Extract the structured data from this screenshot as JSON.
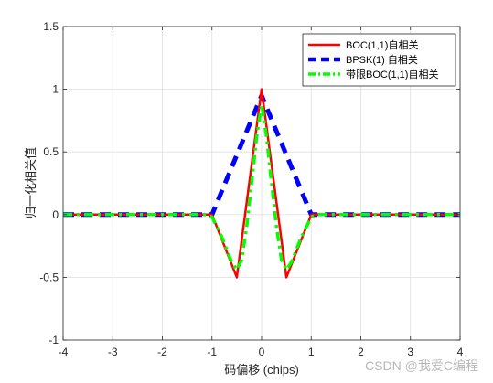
{
  "chart_data": {
    "type": "line",
    "title": "",
    "xlabel": "码偏移 (chips)",
    "ylabel": "归一化相关值",
    "xlim": [
      -4,
      4
    ],
    "ylim": [
      -1,
      1.5
    ],
    "xticks": [
      -4,
      -3,
      -2,
      -1,
      0,
      1,
      2,
      3,
      4
    ],
    "yticks": [
      -1,
      -0.5,
      0,
      0.5,
      1,
      1.5
    ],
    "xtick_labels": [
      "-4",
      "-3",
      "-2",
      "-1",
      "0",
      "1",
      "2",
      "3",
      "4"
    ],
    "ytick_labels": [
      "-1",
      "-0.5",
      "0",
      "0.5",
      "1",
      "1.5"
    ],
    "grid": true,
    "legend_position": "top-right",
    "series": [
      {
        "name": "BOC(1,1)自相关",
        "color": "#ff0000",
        "style": "solid",
        "x": [
          -4,
          -1,
          -0.5,
          0,
          0.5,
          1,
          4
        ],
        "y": [
          0,
          0,
          -0.5,
          1,
          -0.5,
          0,
          0
        ]
      },
      {
        "name": "BPSK(1) 自相关",
        "color": "#0000ff",
        "style": "dashed",
        "x": [
          -4,
          -1,
          0,
          1,
          4
        ],
        "y": [
          0,
          0,
          0.95,
          0,
          0
        ]
      },
      {
        "name": "带限BOC(1,1)自相关",
        "color": "#00ff00",
        "style": "dash-dot",
        "x": [
          -4,
          -1.1,
          -1,
          -0.8,
          -0.6,
          -0.5,
          -0.4,
          -0.3,
          -0.2,
          -0.1,
          0,
          0.1,
          0.2,
          0.3,
          0.4,
          0.5,
          0.6,
          0.8,
          1,
          1.1,
          4
        ],
        "y": [
          0,
          0,
          -0.02,
          -0.18,
          -0.38,
          -0.44,
          -0.36,
          -0.1,
          0.25,
          0.62,
          0.88,
          0.62,
          0.25,
          -0.1,
          -0.36,
          -0.44,
          -0.38,
          -0.18,
          -0.02,
          0,
          0
        ]
      }
    ]
  },
  "watermark": "CSDN @我爱C编程"
}
